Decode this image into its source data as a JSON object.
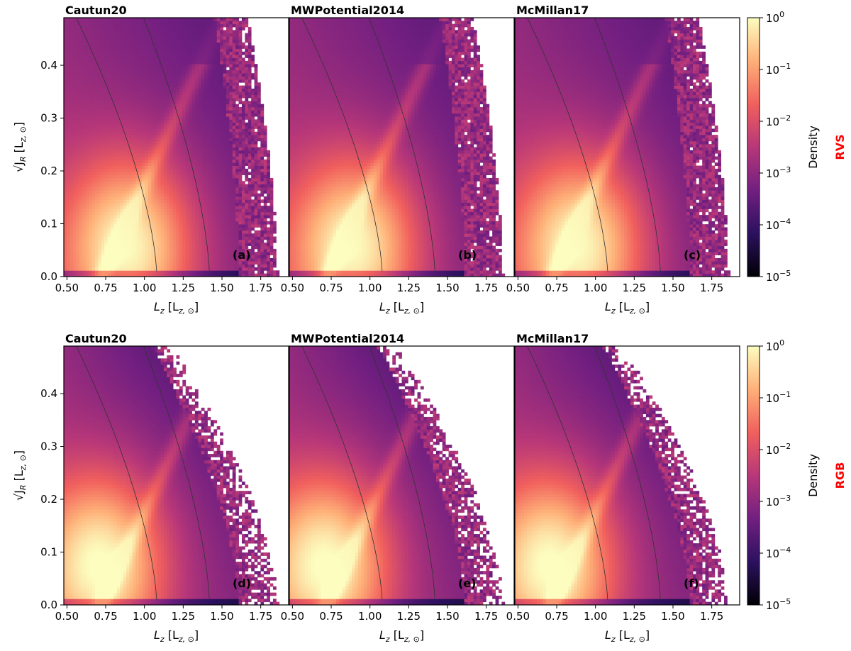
{
  "figure": {
    "rows": [
      {
        "row_label": "RVS",
        "sparse": 0.25
      },
      {
        "row_label": "RGB",
        "sparse": 1.0
      }
    ],
    "colorbar_label": "Density",
    "colorbar_ticks": [
      "10",
      "10",
      "10",
      "10",
      "10",
      "10"
    ],
    "colorbar_exponents": [
      "0",
      "−1",
      "−2",
      "−3",
      "−4",
      "−5"
    ],
    "colormap": [
      "#000004",
      "#2c115f",
      "#721f81",
      "#b73779",
      "#f1605d",
      "#feb078",
      "#fcfdbf"
    ],
    "xlabel_main": "L",
    "xlabel_sub": "z",
    "xlabel_unit": " [L",
    "xlabel_unit_sub": "z, ⊙",
    "xlabel_close": "]",
    "ylabel_text": "√J",
    "ylabel_sub": "R",
    "ylabel_unit": " [L",
    "ylabel_unit_sub": "z, ⊙",
    "ylabel_close": "]"
  },
  "chart_data": [
    {
      "type": "heatmap",
      "panel": "(a)",
      "title": "Cautun20",
      "row": "RVS",
      "xlabel": "L_z [L_{z,⊙}]",
      "ylabel": "√J_R [L_{z,⊙}]",
      "xlim": [
        0.48,
        1.93
      ],
      "ylim": [
        0.0,
        0.49
      ],
      "xticks": [
        "0.50",
        "0.75",
        "1.00",
        "1.25",
        "1.50",
        "1.75"
      ],
      "yticks": [
        "0.0",
        "0.1",
        "0.2",
        "0.3",
        "0.4"
      ],
      "peak": [
        0.9,
        0.06
      ],
      "resonance_lz": [
        1.08,
        1.42
      ],
      "color_scale": "log",
      "clim": [
        1e-05,
        1
      ]
    },
    {
      "type": "heatmap",
      "panel": "(b)",
      "title": "MWPotential2014",
      "row": "RVS",
      "xlabel": "L_z [L_{z,⊙}]",
      "ylabel": "",
      "xlim": [
        0.48,
        1.93
      ],
      "ylim": [
        0.0,
        0.49
      ],
      "xticks": [
        "0.50",
        "0.75",
        "1.00",
        "1.25",
        "1.50",
        "1.75"
      ],
      "yticks": [],
      "peak": [
        0.9,
        0.06
      ],
      "resonance_lz": [
        1.08,
        1.42
      ],
      "color_scale": "log",
      "clim": [
        1e-05,
        1
      ]
    },
    {
      "type": "heatmap",
      "panel": "(c)",
      "title": "McMillan17",
      "row": "RVS",
      "xlabel": "L_z [L_{z,⊙}]",
      "ylabel": "",
      "xlim": [
        0.48,
        1.93
      ],
      "ylim": [
        0.0,
        0.49
      ],
      "xticks": [
        "0.50",
        "0.75",
        "1.00",
        "1.25",
        "1.50",
        "1.75"
      ],
      "yticks": [],
      "peak": [
        0.9,
        0.06
      ],
      "resonance_lz": [
        1.08,
        1.42
      ],
      "color_scale": "log",
      "clim": [
        1e-05,
        1
      ]
    },
    {
      "type": "heatmap",
      "panel": "(d)",
      "title": "Cautun20",
      "row": "RGB",
      "xlabel": "L_z [L_{z,⊙}]",
      "ylabel": "√J_R [L_{z,⊙}]",
      "xlim": [
        0.48,
        1.93
      ],
      "ylim": [
        0.0,
        0.49
      ],
      "xticks": [
        "0.50",
        "0.75",
        "1.00",
        "1.25",
        "1.50",
        "1.75"
      ],
      "yticks": [
        "0.0",
        "0.1",
        "0.2",
        "0.3",
        "0.4"
      ],
      "peak": [
        0.72,
        0.08
      ],
      "resonance_lz": [
        1.08,
        1.42
      ],
      "color_scale": "log",
      "clim": [
        1e-05,
        1
      ]
    },
    {
      "type": "heatmap",
      "panel": "(e)",
      "title": "MWPotential2014",
      "row": "RGB",
      "xlabel": "L_z [L_{z,⊙}]",
      "ylabel": "",
      "xlim": [
        0.48,
        1.93
      ],
      "ylim": [
        0.0,
        0.49
      ],
      "xticks": [
        "0.50",
        "0.75",
        "1.00",
        "1.25",
        "1.50",
        "1.75"
      ],
      "yticks": [],
      "peak": [
        0.72,
        0.08
      ],
      "resonance_lz": [
        1.08,
        1.42
      ],
      "color_scale": "log",
      "clim": [
        1e-05,
        1
      ]
    },
    {
      "type": "heatmap",
      "panel": "(f)",
      "title": "McMillan17",
      "row": "RGB",
      "xlabel": "L_z [L_{z,⊙}]",
      "ylabel": "",
      "xlim": [
        0.48,
        1.93
      ],
      "ylim": [
        0.0,
        0.49
      ],
      "xticks": [
        "0.50",
        "0.75",
        "1.00",
        "1.25",
        "1.50",
        "1.75"
      ],
      "yticks": [],
      "peak": [
        0.72,
        0.08
      ],
      "resonance_lz": [
        1.08,
        1.42
      ],
      "color_scale": "log",
      "clim": [
        1e-05,
        1
      ]
    }
  ]
}
